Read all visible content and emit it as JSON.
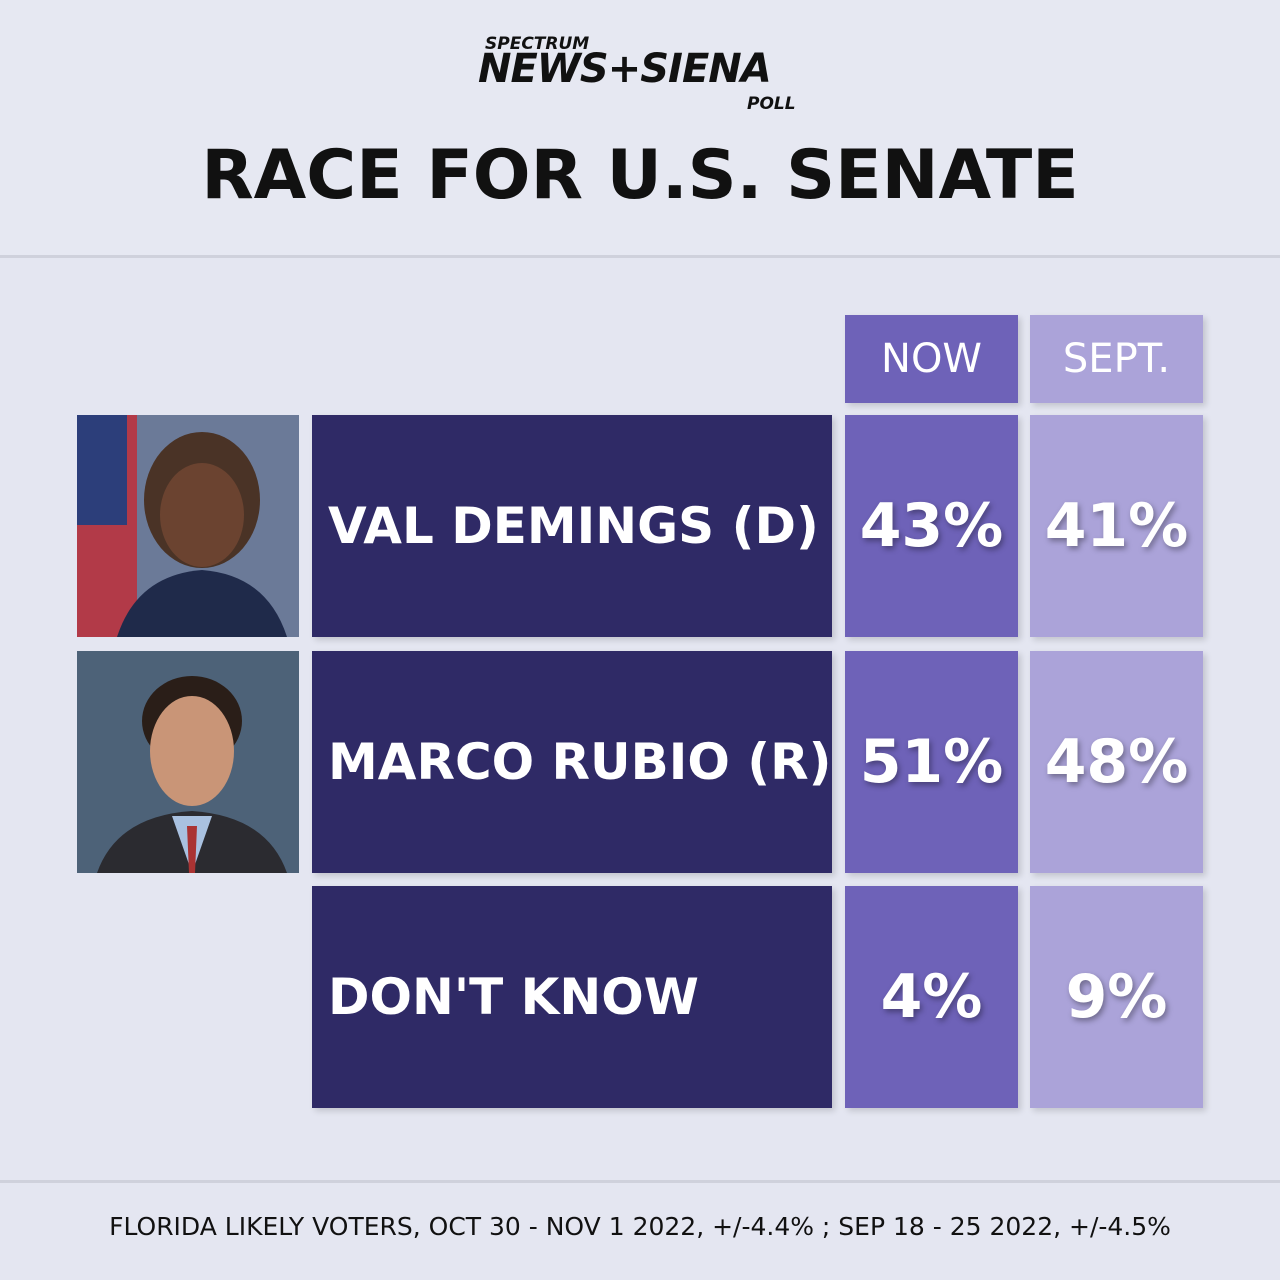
{
  "header": {
    "logo": {
      "top": "SPECTRUM",
      "main": "NEWS+SIENA",
      "bottom": "POLL"
    },
    "title": "RACE FOR U.S. SENATE"
  },
  "table": {
    "columns": [
      "NOW",
      "SEPT."
    ],
    "rows": [
      [
        "VAL DEMINGS (D)",
        "43%",
        "41%"
      ],
      [
        "MARCO RUBIO (R)",
        "51%",
        "48%"
      ],
      [
        "DON'T KNOW",
        "4%",
        "9%"
      ]
    ]
  },
  "footer": {
    "note": "FLORIDA LIKELY VOTERS, OCT 30 - NOV 1 2022, +/-4.4% ; SEP 18 - 25 2022, +/-4.5%"
  }
}
